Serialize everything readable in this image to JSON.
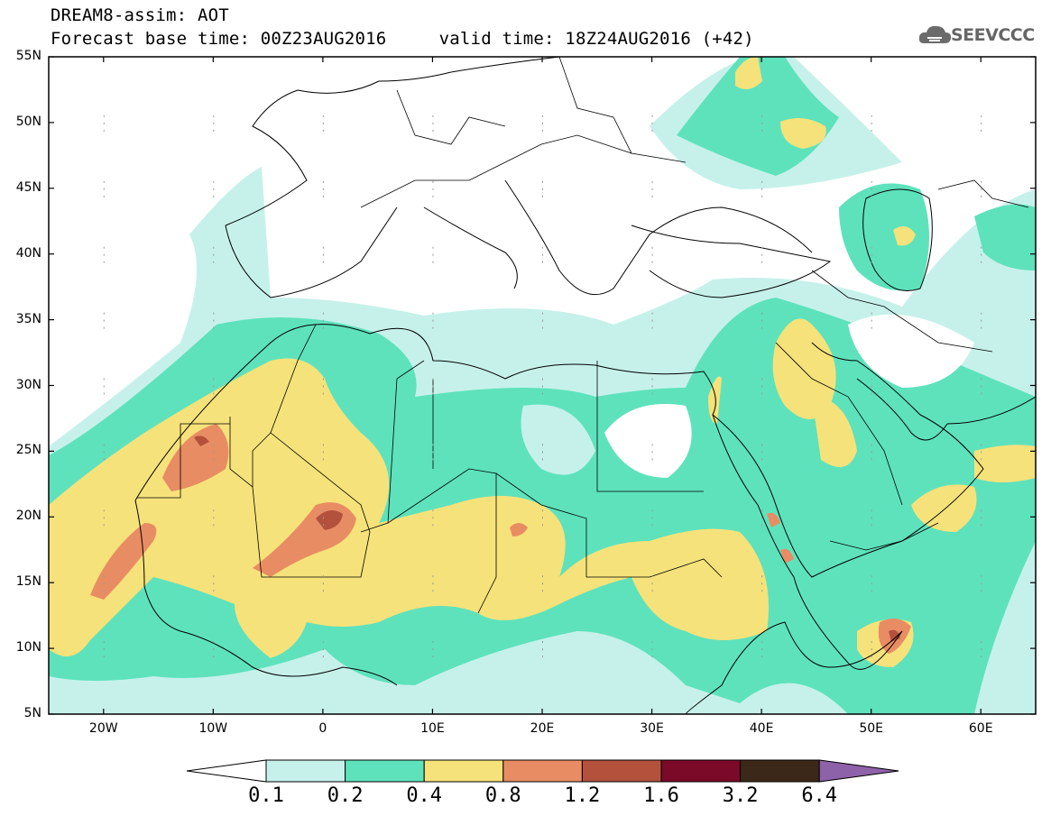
{
  "header": {
    "line1": "DREAM8-assim: AOT",
    "line2": "Forecast base time: 00Z23AUG2016     valid time: 18Z24AUG2016 (+42)"
  },
  "logo": {
    "text": "SEEVCCC",
    "icon": "cloud-icon"
  },
  "map": {
    "lat_labels": [
      "55N",
      "50N",
      "45N",
      "40N",
      "35N",
      "30N",
      "25N",
      "20N",
      "15N",
      "10N",
      "5N"
    ],
    "lon_labels": [
      "20W",
      "10W",
      "0",
      "10E",
      "20E",
      "30E",
      "40E",
      "50E",
      "60E"
    ],
    "lon_range": [
      -25,
      65
    ],
    "lat_range": [
      5,
      55
    ]
  },
  "legend": {
    "labels": [
      "0.1",
      "0.2",
      "0.4",
      "0.8",
      "1.2",
      "1.6",
      "3.2",
      "6.4"
    ],
    "colors": [
      "#ffffff",
      "#c6f1ea",
      "#5ee2bc",
      "#f6e27a",
      "#e88c63",
      "#b3513d",
      "#7a0a28",
      "#3b2818",
      "#8e62a8"
    ]
  }
}
